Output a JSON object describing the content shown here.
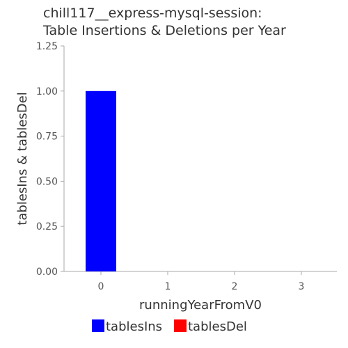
{
  "chart_data": {
    "type": "bar",
    "title_lines": [
      "chill117__express-mysql-session:",
      "Table Insertions & Deletions per Year"
    ],
    "xlabel": "runningYearFromV0",
    "ylabel": "tablesIns & tablesDel",
    "categories": [
      "0",
      "1",
      "2",
      "3"
    ],
    "series": [
      {
        "name": "tablesIns",
        "color": "#0000ff",
        "values": [
          1,
          0,
          0,
          0
        ]
      },
      {
        "name": "tablesDel",
        "color": "#ff0000",
        "values": [
          0,
          0,
          0,
          0
        ]
      }
    ],
    "ylim": [
      0,
      1.25
    ],
    "yticks": [
      "0.00",
      "0.25",
      "0.50",
      "0.75",
      "1.00",
      "1.25"
    ],
    "grid": false,
    "legend_position": "bottom"
  }
}
